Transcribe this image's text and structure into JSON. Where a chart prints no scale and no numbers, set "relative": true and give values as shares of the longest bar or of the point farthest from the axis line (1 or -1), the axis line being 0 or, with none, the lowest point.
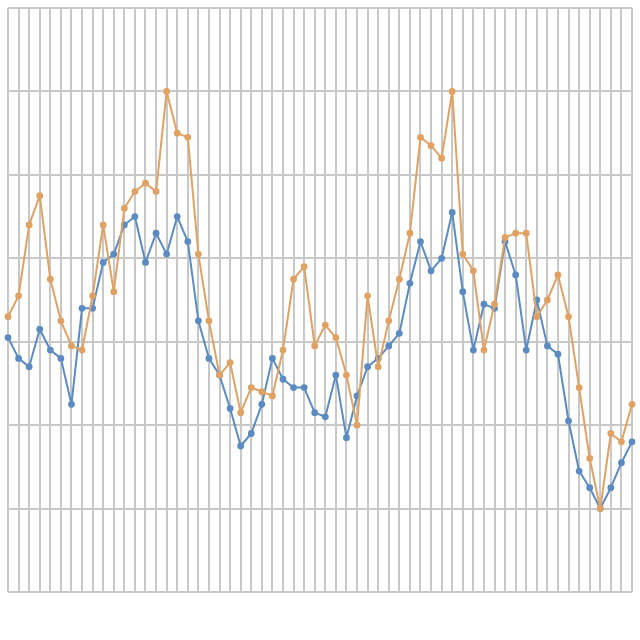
{
  "chart_data": {
    "type": "line",
    "relative": true,
    "categories": [
      null,
      null,
      null,
      null,
      null,
      null,
      null,
      null,
      null,
      null,
      null,
      null,
      null,
      null,
      null,
      null,
      null,
      null,
      null,
      null,
      null,
      null,
      null,
      null,
      null,
      null,
      null,
      null,
      null,
      null,
      null,
      null,
      null,
      null,
      null,
      null,
      null,
      null,
      null,
      null,
      null,
      null,
      null,
      null,
      null,
      null,
      null,
      null,
      null,
      null,
      null,
      null,
      null,
      null,
      null,
      null,
      null,
      null,
      null,
      null
    ],
    "series": [
      {
        "color": "#e0a264",
        "values": [
          0.46,
          0.51,
          0.68,
          0.75,
          0.55,
          0.45,
          0.39,
          0.38,
          0.51,
          0.68,
          0.52,
          0.72,
          0.76,
          0.78,
          0.76,
          1,
          0.9,
          0.89,
          0.61,
          0.45,
          0.32,
          0.35,
          0.23,
          0.29,
          0.28,
          0.27,
          0.38,
          0.55,
          0.58,
          0.39,
          0.44,
          0.41,
          0.32,
          0.2,
          0.51,
          0.34,
          0.45,
          0.55,
          0.66,
          0.89,
          0.87,
          0.84,
          1,
          0.61,
          0.57,
          0.38,
          0.49,
          0.65,
          0.66,
          0.66,
          0.46,
          0.5,
          0.56,
          0.46,
          0.29,
          0.12,
          0,
          0.18,
          0.16,
          0.25
        ]
      },
      {
        "color": "#5b8bc0",
        "values": [
          0.41,
          0.36,
          0.34,
          0.43,
          0.38,
          0.36,
          0.25,
          0.48,
          0.48,
          0.59,
          0.61,
          0.68,
          0.7,
          0.59,
          0.66,
          0.61,
          0.7,
          0.64,
          0.45,
          0.36,
          0.32,
          0.24,
          0.15,
          0.18,
          0.25,
          0.36,
          0.31,
          0.29,
          0.29,
          0.23,
          0.22,
          0.32,
          0.17,
          0.27,
          0.34,
          0.36,
          0.39,
          0.42,
          0.54,
          0.64,
          0.57,
          0.6,
          0.71,
          0.52,
          0.38,
          0.49,
          0.48,
          0.64,
          0.56,
          0.38,
          0.5,
          0.39,
          0.37,
          0.21,
          0.09,
          0.05,
          0,
          0.05,
          0.11,
          0.16
        ]
      }
    ],
    "grid": true,
    "marker": "circle",
    "tick_labels": false,
    "legend": false
  }
}
